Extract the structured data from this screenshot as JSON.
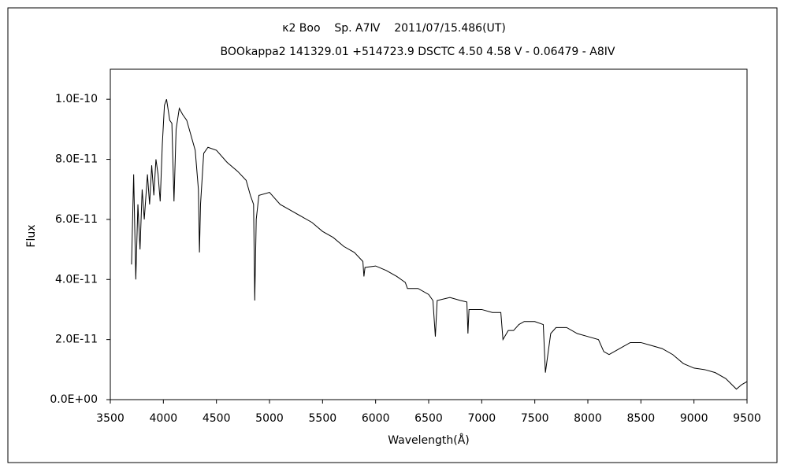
{
  "chart_data": {
    "type": "line",
    "title": "κ2 Boo    Sp. A7Ⅳ    2011/07/15.486(UT)",
    "subtitle": "BOOkappa2 141329.01 +514723.9 DSCTC 4.50 4.58 V - 0.06479 - A8IV",
    "xlabel": "Wavelength(Å)",
    "ylabel": "Flux",
    "xlim": [
      3500,
      9500
    ],
    "xticks": [
      3500,
      4000,
      4500,
      5000,
      5500,
      6000,
      6500,
      7000,
      7500,
      8000,
      8500,
      9000,
      9500
    ],
    "ylim": [
      0,
      1.1e-10
    ],
    "yticks": [
      {
        "value": 0,
        "label": "0.0E+00"
      },
      {
        "value": 2e-11,
        "label": "2.0E-11"
      },
      {
        "value": 4e-11,
        "label": "4.0E-11"
      },
      {
        "value": 6e-11,
        "label": "6.0E-11"
      },
      {
        "value": 8e-11,
        "label": "8.0E-11"
      },
      {
        "value": 1e-10,
        "label": "1.0E-10"
      }
    ],
    "grid": false,
    "series": [
      {
        "color": "#000000",
        "x": [
          3700,
          3720,
          3740,
          3760,
          3780,
          3800,
          3820,
          3850,
          3870,
          3890,
          3910,
          3930,
          3950,
          3970,
          3990,
          4010,
          4030,
          4060,
          4080,
          4100,
          4120,
          4150,
          4180,
          4220,
          4260,
          4300,
          4330,
          4340,
          4350,
          4380,
          4420,
          4500,
          4600,
          4700,
          4780,
          4820,
          4850,
          4861,
          4875,
          4900,
          5000,
          5100,
          5200,
          5300,
          5400,
          5500,
          5600,
          5700,
          5800,
          5880,
          5890,
          5900,
          6000,
          6100,
          6200,
          6280,
          6300,
          6400,
          6500,
          6540,
          6563,
          6580,
          6700,
          6800,
          6860,
          6870,
          6880,
          7000,
          7100,
          7180,
          7200,
          7250,
          7300,
          7350,
          7400,
          7500,
          7580,
          7600,
          7650,
          7700,
          7800,
          7900,
          8000,
          8100,
          8150,
          8200,
          8300,
          8400,
          8500,
          8600,
          8700,
          8800,
          8900,
          9000,
          9100,
          9200,
          9300,
          9400,
          9450,
          9500
        ],
        "values": [
          4.5e-11,
          7.5e-11,
          4e-11,
          6.5e-11,
          5e-11,
          7e-11,
          6e-11,
          7.5e-11,
          6.5e-11,
          7.8e-11,
          6.8e-11,
          8e-11,
          7.5e-11,
          6.6e-11,
          8.5e-11,
          9.8e-11,
          1e-10,
          9.3e-11,
          9.2e-11,
          6.6e-11,
          9e-11,
          9.7e-11,
          9.5e-11,
          9.3e-11,
          8.8e-11,
          8.3e-11,
          7e-11,
          4.9e-11,
          6.5e-11,
          8.2e-11,
          8.4e-11,
          8.3e-11,
          7.9e-11,
          7.6e-11,
          7.3e-11,
          6.8e-11,
          6.5e-11,
          3.3e-11,
          6e-11,
          6.8e-11,
          6.9e-11,
          6.5e-11,
          6.3e-11,
          6.1e-11,
          5.9e-11,
          5.6e-11,
          5.4e-11,
          5.1e-11,
          4.9e-11,
          4.6e-11,
          4.1e-11,
          4.4e-11,
          4.45e-11,
          4.3e-11,
          4.1e-11,
          3.9e-11,
          3.7e-11,
          3.7e-11,
          3.5e-11,
          3.3e-11,
          2.1e-11,
          3.3e-11,
          3.4e-11,
          3.3e-11,
          3.25e-11,
          2.2e-11,
          3e-11,
          3e-11,
          2.9e-11,
          2.9e-11,
          2e-11,
          2.3e-11,
          2.3e-11,
          2.5e-11,
          2.6e-11,
          2.6e-11,
          2.5e-11,
          9e-12,
          2.2e-11,
          2.4e-11,
          2.4e-11,
          2.2e-11,
          2.1e-11,
          2e-11,
          1.6e-11,
          1.5e-11,
          1.7e-11,
          1.9e-11,
          1.9e-11,
          1.8e-11,
          1.7e-11,
          1.5e-11,
          1.2e-11,
          1.05e-11,
          1e-11,
          9e-12,
          7e-12,
          3.5e-12,
          5e-12,
          6e-12
        ]
      }
    ]
  }
}
